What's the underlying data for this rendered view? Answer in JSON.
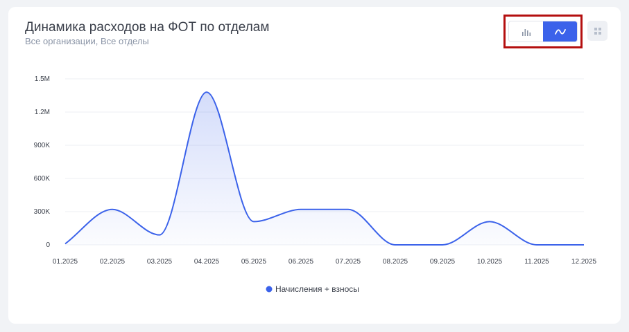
{
  "header": {
    "title": "Динамика расходов на ФОТ по отделам",
    "subtitle": "Все организации, Все отделы"
  },
  "toolbar": {
    "bar_icon": "bar-chart-icon",
    "line_icon": "line-chart-icon",
    "menu_icon": "grid-menu-icon",
    "active": "line"
  },
  "colors": {
    "accent": "#3b62ea",
    "highlight": "#b40f0f",
    "series": "#3b62ea"
  },
  "chart_data": {
    "type": "area",
    "categories": [
      "01.2025",
      "02.2025",
      "03.2025",
      "04.2025",
      "05.2025",
      "06.2025",
      "07.2025",
      "08.2025",
      "09.2025",
      "10.2025",
      "11.2025",
      "12.2025"
    ],
    "series": [
      {
        "name": "Начисления + взносы",
        "values": [
          10000,
          320000,
          90000,
          1380000,
          210000,
          320000,
          320000,
          0,
          0,
          210000,
          0,
          0
        ]
      }
    ],
    "yticks": [
      0,
      300000,
      600000,
      900000,
      1200000,
      1500000
    ],
    "ytick_labels": [
      "0",
      "300K",
      "600K",
      "900K",
      "1.2M",
      "1.5M"
    ],
    "ylim": [
      0,
      1500000
    ],
    "grid": true,
    "legend": "bottom-center"
  }
}
